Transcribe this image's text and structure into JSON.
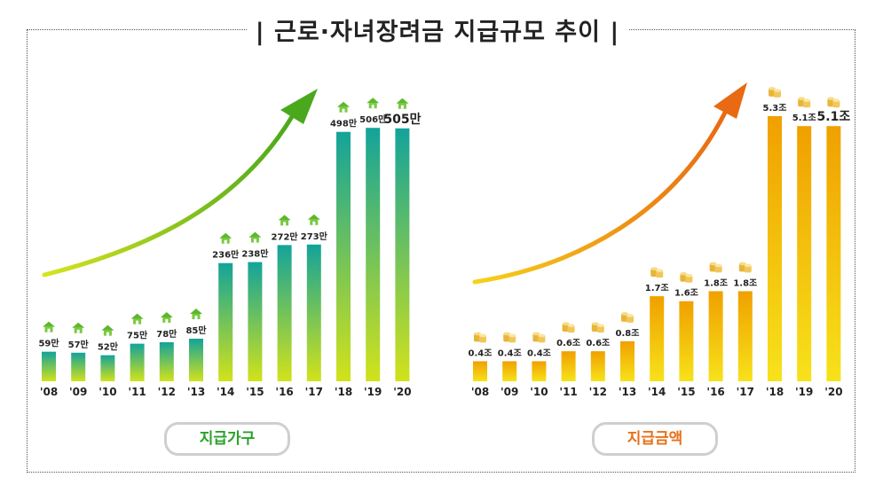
{
  "title": "| 근로·자녀장려금 지급규모 추이 |",
  "colors": {
    "households_top": "#13a39a",
    "households_bottom": "#d2e21b",
    "amount_top": "#f0a000",
    "amount_bottom": "#f7e21a",
    "arrow_left": "#4aa81c",
    "arrow_right": "#e86a12",
    "caption_left": "#2aa12a",
    "caption_right": "#e8711a"
  },
  "chart_data": [
    {
      "type": "bar",
      "categories": [
        "'08",
        "'09",
        "'10",
        "'11",
        "'12",
        "'13",
        "'14",
        "'15",
        "'16",
        "'17",
        "'18",
        "'19",
        "'20"
      ],
      "values": [
        59,
        57,
        52,
        75,
        78,
        85,
        236,
        238,
        272,
        273,
        498,
        506,
        505
      ],
      "labels": [
        "59만",
        "57만",
        "52만",
        "75만",
        "78만",
        "85만",
        "236만",
        "238만",
        "272만",
        "273만",
        "498만",
        "506만",
        "505만"
      ],
      "caption": "지급가구",
      "marker_icon": "house-icon",
      "ylim": [
        0,
        540
      ]
    },
    {
      "type": "bar",
      "categories": [
        "'08",
        "'09",
        "'10",
        "'11",
        "'12",
        "'13",
        "'14",
        "'15",
        "'16",
        "'17",
        "'18",
        "'19",
        "'20"
      ],
      "values": [
        0.4,
        0.4,
        0.4,
        0.6,
        0.6,
        0.8,
        1.7,
        1.6,
        1.8,
        1.8,
        5.3,
        5.1,
        5.1
      ],
      "labels": [
        "0.4조",
        "0.4조",
        "0.4조",
        "0.6조",
        "0.6조",
        "0.8조",
        "1.7조",
        "1.6조",
        "1.8조",
        "1.8조",
        "5.3조",
        "5.1조",
        "5.1조"
      ],
      "caption": "지급금액",
      "marker_icon": "coins-icon",
      "ylim": [
        0,
        5.6
      ]
    }
  ]
}
